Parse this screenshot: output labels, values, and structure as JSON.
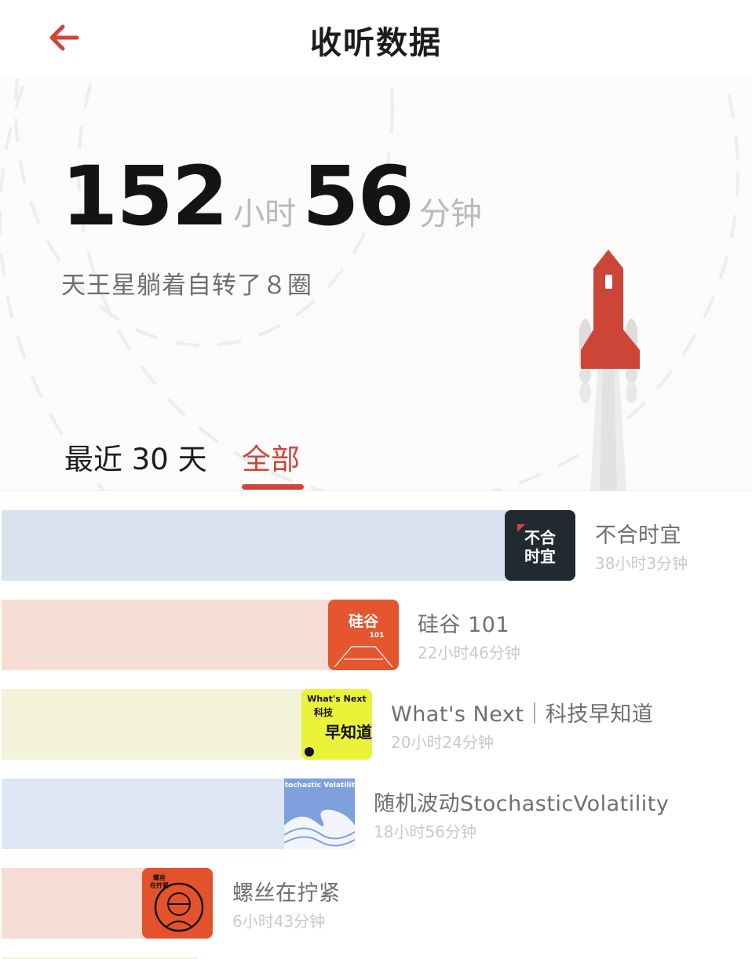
{
  "header": {
    "title": "收听数据",
    "back_icon": "arrow-left-icon",
    "accent_color": "#d0453a"
  },
  "summary": {
    "hours": "152",
    "hours_unit": "小时",
    "minutes": "56",
    "minutes_unit": "分钟",
    "tagline": "天王星躺着自转了８圈"
  },
  "tabs": {
    "recent": "最近 30 天",
    "all": "全部",
    "selected": "all"
  },
  "podcasts": [
    {
      "title": "不合时宜",
      "duration": "38小时3分钟",
      "bar_color": "#d9e3f0",
      "share": 1.0,
      "cover_lines": [
        "不合",
        "时宜"
      ]
    },
    {
      "title": "硅谷 101",
      "duration": "22小时46分钟",
      "bar_color": "#f7ded4",
      "share": 0.6,
      "cover_lines": [
        "硅谷",
        "101"
      ]
    },
    {
      "title": "What's Next｜科技早知道",
      "duration": "20小时24分钟",
      "bar_color": "#f3f3d9",
      "share": 0.54,
      "cover_lines": [
        "What's Next",
        "科技",
        "早知道"
      ]
    },
    {
      "title": "随机波动StochasticVolatility",
      "duration": "18小时56分钟",
      "bar_color": "#dfe6f5",
      "share": 0.5,
      "cover_lines": [
        "Stochastic Volatility"
      ]
    },
    {
      "title": "螺丝在拧紧",
      "duration": "6小时43分钟",
      "bar_color": "#f6ddd6",
      "share": 0.18,
      "cover_lines": [
        "螺丝",
        "在拧紧"
      ]
    }
  ]
}
